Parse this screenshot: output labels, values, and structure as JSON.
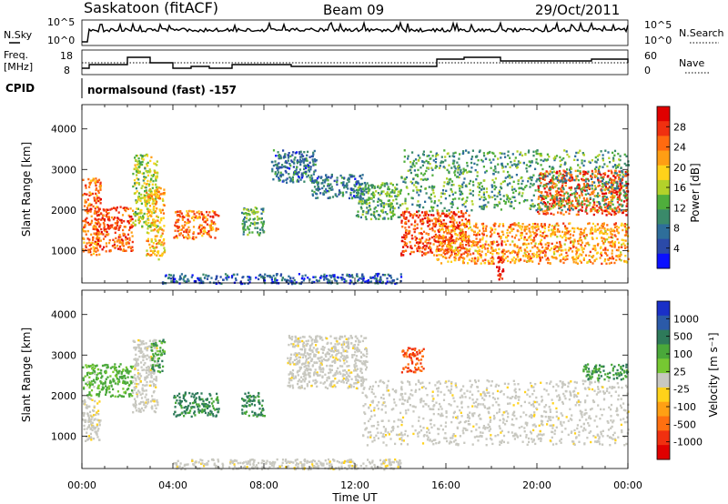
{
  "header": {
    "station": "Saskatoon (fitACF)",
    "beam": "Beam 09",
    "date": "29/Oct/2011"
  },
  "params": {
    "nsky_label": "N.Sky",
    "nsky_ticks": [
      "10^5",
      "10^0"
    ],
    "nsearch_label": "N.Search",
    "nsearch_ticks": [
      "10^5",
      "10^0"
    ],
    "freq_label": "Freq.",
    "freq_unit": "[MHz]",
    "freq_ticks": [
      "18",
      "8"
    ],
    "nave_label": "Nave",
    "nave_ticks": [
      "60",
      "0"
    ],
    "cpid_label": "CPID",
    "cpid_value": "normalsound (fast) -157"
  },
  "colors": {
    "power": [
      "#0a10ff",
      "#2b4aa8",
      "#2e6e9a",
      "#3a8a6a",
      "#4fae3c",
      "#b3d22a",
      "#ffd21a",
      "#ff9e14",
      "#ff6a10",
      "#f03010",
      "#e00000"
    ],
    "velocity": [
      "#1a30c8",
      "#2b5aa8",
      "#2e7a5a",
      "#4aa83a",
      "#76c832",
      "#c8c8c0",
      "#ffd21a",
      "#ffa014",
      "#ff7010",
      "#f03010",
      "#e00000"
    ]
  },
  "chart_data": [
    {
      "type": "heatmap",
      "panel": "power",
      "ylabel": "Slant Range [km]",
      "y_ticks": [
        1000,
        2000,
        3000,
        4000
      ],
      "ylim": [
        200,
        4600
      ],
      "xlim": [
        0,
        24
      ],
      "colorbar_label": "Power [dB]",
      "colorbar_ticks": [
        "4",
        "8",
        "12",
        "16",
        "20",
        "24",
        "28"
      ],
      "regions": [
        {
          "t": [
            0.0,
            0.8
          ],
          "r": [
            900,
            2800
          ],
          "v": 24
        },
        {
          "t": [
            0.6,
            2.2
          ],
          "r": [
            1000,
            2100
          ],
          "v": 26
        },
        {
          "t": [
            2.2,
            3.3
          ],
          "r": [
            1600,
            3400
          ],
          "v": 16
        },
        {
          "t": [
            2.8,
            3.6
          ],
          "r": [
            800,
            2600
          ],
          "v": 20
        },
        {
          "t": [
            4.0,
            6.0
          ],
          "r": [
            1300,
            2000
          ],
          "v": 24
        },
        {
          "t": [
            7.0,
            8.0
          ],
          "r": [
            1400,
            2100
          ],
          "v": 12
        },
        {
          "t": [
            8.3,
            10.3
          ],
          "r": [
            2700,
            3500
          ],
          "v": 8
        },
        {
          "t": [
            10.0,
            12.3
          ],
          "r": [
            2300,
            2900
          ],
          "v": 8
        },
        {
          "t": [
            12.0,
            14.0
          ],
          "r": [
            1800,
            2700
          ],
          "v": 12
        },
        {
          "t": [
            14.0,
            17.0
          ],
          "r": [
            900,
            2000
          ],
          "v": 26
        },
        {
          "t": [
            15.5,
            24.0
          ],
          "r": [
            700,
            1700
          ],
          "v": 22
        },
        {
          "t": [
            20.0,
            24.0
          ],
          "r": [
            1900,
            3000
          ],
          "v": 26
        },
        {
          "t": [
            14.0,
            24.0
          ],
          "r": [
            2000,
            3500
          ],
          "v": 12
        },
        {
          "t": [
            18.2,
            18.5
          ],
          "r": [
            300,
            1200
          ],
          "v": 30
        },
        {
          "t": [
            3.5,
            14.0
          ],
          "r": [
            200,
            450
          ],
          "v": 6
        }
      ]
    },
    {
      "type": "heatmap",
      "panel": "velocity",
      "xlabel": "Time UT",
      "ylabel": "Slant Range [km]",
      "y_ticks": [
        1000,
        2000,
        3000,
        4000
      ],
      "ylim": [
        200,
        4600
      ],
      "xlim": [
        0,
        24
      ],
      "x_ticks": [
        "00:00",
        "04:00",
        "08:00",
        "12:00",
        "16:00",
        "20:00",
        "00:00"
      ],
      "colorbar_label": "Velocity [m s⁻¹]",
      "colorbar_ticks": [
        "1000",
        "500",
        "100",
        "25",
        "-25",
        "-100",
        "-500",
        "-1000"
      ],
      "regions": [
        {
          "t": [
            0.0,
            0.8
          ],
          "r": [
            900,
            2000
          ],
          "v": 0
        },
        {
          "t": [
            0.0,
            2.2
          ],
          "r": [
            2000,
            2800
          ],
          "v": 150
        },
        {
          "t": [
            2.2,
            3.3
          ],
          "r": [
            1600,
            3400
          ],
          "v": 0
        },
        {
          "t": [
            3.0,
            3.6
          ],
          "r": [
            2600,
            3400
          ],
          "v": 200
        },
        {
          "t": [
            4.0,
            6.0
          ],
          "r": [
            1500,
            2100
          ],
          "v": 300
        },
        {
          "t": [
            7.0,
            8.0
          ],
          "r": [
            1500,
            2100
          ],
          "v": 300
        },
        {
          "t": [
            9.0,
            12.5
          ],
          "r": [
            2200,
            3500
          ],
          "v": 0
        },
        {
          "t": [
            12.3,
            24.0
          ],
          "r": [
            800,
            2400
          ],
          "v": 0
        },
        {
          "t": [
            14.0,
            15.0
          ],
          "r": [
            2600,
            3200
          ],
          "v": -300
        },
        {
          "t": [
            22.0,
            24.0
          ],
          "r": [
            2400,
            2800
          ],
          "v": 200
        },
        {
          "t": [
            4.0,
            14.0
          ],
          "r": [
            200,
            450
          ],
          "v": 0
        }
      ]
    }
  ]
}
